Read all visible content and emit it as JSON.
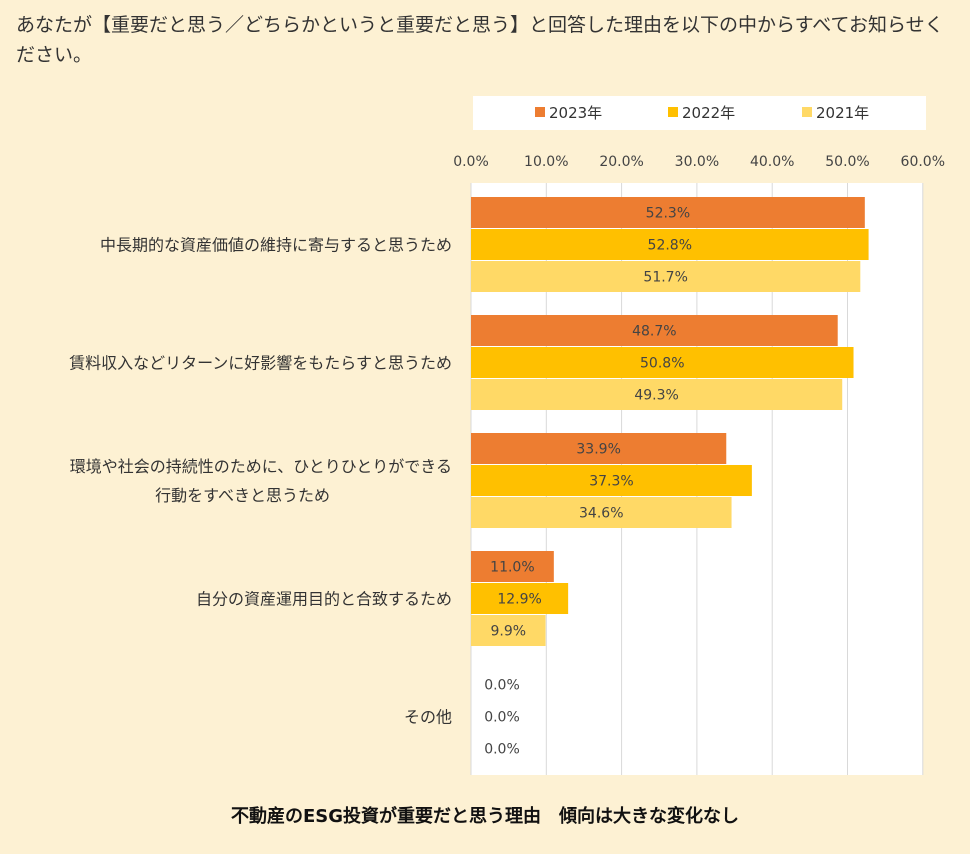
{
  "question": "あなたが【重要だと思う／どちらかというと重要だと思う】と回答した理由を以下の中からすべてお知らせください。",
  "caption": "不動産のESG投資が重要だと思う理由　傾向は大きな変化なし",
  "colors": {
    "background": "#fdf1d3",
    "plot_background": "#ffffff",
    "grid": "#d9d9d9",
    "series_2023": "#ed7d31",
    "series_2022": "#ffc000",
    "series_2021": "#ffd966"
  },
  "chart_data": {
    "type": "bar",
    "orientation": "horizontal",
    "title": "",
    "xlabel": "",
    "ylabel": "",
    "xlim": [
      0,
      60
    ],
    "x_ticks": [
      "0.0%",
      "10.0%",
      "20.0%",
      "30.0%",
      "40.0%",
      "50.0%",
      "60.0%"
    ],
    "x_tick_values": [
      0,
      10,
      20,
      30,
      40,
      50,
      60
    ],
    "grid": true,
    "legend_position": "top",
    "categories": [
      [
        "中長期的な資産価値の維持に寄与すると思うため"
      ],
      [
        "賃料収入などリターンに好影響をもたらすと思うため"
      ],
      [
        "環境や社会の持続性のために、ひとりひとりができる",
        "行動をすべきと思うため"
      ],
      [
        "自分の資産運用目的と合致するため"
      ],
      [
        "その他"
      ]
    ],
    "series": [
      {
        "name": "2023年",
        "color": "#ed7d31",
        "values": [
          52.3,
          48.7,
          33.9,
          11.0,
          0.0
        ],
        "labels": [
          "52.3%",
          "48.7%",
          "33.9%",
          "11.0%",
          "0.0%"
        ]
      },
      {
        "name": "2022年",
        "color": "#ffc000",
        "values": [
          52.8,
          50.8,
          37.3,
          12.9,
          0.0
        ],
        "labels": [
          "52.8%",
          "50.8%",
          "37.3%",
          "12.9%",
          "0.0%"
        ]
      },
      {
        "name": "2021年",
        "color": "#ffd966",
        "values": [
          51.7,
          49.3,
          34.6,
          9.9,
          0.0
        ],
        "labels": [
          "51.7%",
          "49.3%",
          "34.6%",
          "9.9%",
          "0.0%"
        ]
      }
    ]
  }
}
